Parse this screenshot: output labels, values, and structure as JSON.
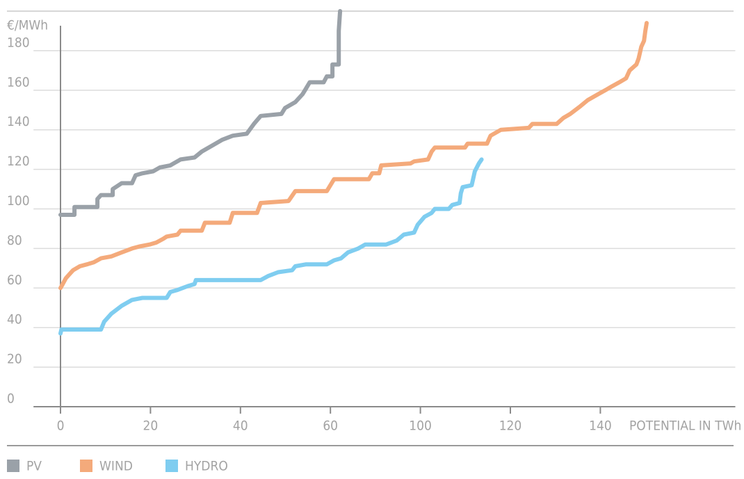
{
  "chart_data": {
    "type": "line",
    "y_label": "€/MWh",
    "x_label": "POTENTIAL IN TWh",
    "xlim": [
      -6,
      170
    ],
    "xticks": [
      0,
      20,
      40,
      60,
      100,
      120,
      140
    ],
    "ylim": [
      0,
      200
    ],
    "yticks": [
      0,
      20,
      40,
      60,
      80,
      100,
      120,
      140,
      160,
      180
    ],
    "grid": true,
    "legend": "bottom",
    "series": [
      {
        "name": "PV",
        "color": "#9aa1a8",
        "x": [
          0,
          3.1,
          3.1,
          8.2,
          8.2,
          9,
          11.6,
          11.6,
          13.6,
          15.9,
          16.7,
          18.2,
          20.6,
          22.1,
          24.4,
          26.7,
          29.8,
          31.4,
          33.7,
          36,
          38.3,
          41.4,
          43,
          44.5,
          49.1,
          49.9,
          52.2,
          53.8,
          54.6,
          55.4,
          58.5,
          59.2,
          60.9,
          60.9,
          63.7,
          63.7,
          64.3
        ],
        "values": [
          97,
          97,
          101,
          101,
          105,
          107,
          107,
          110,
          113,
          113,
          117,
          118,
          119,
          121,
          122,
          125,
          126,
          129,
          132,
          135,
          137,
          138,
          143,
          147,
          148,
          151,
          154,
          158,
          161,
          164,
          164,
          167,
          167,
          173,
          173,
          190,
          200
        ]
      },
      {
        "name": "WIND",
        "color": "#f4aa7b",
        "x": [
          0,
          0.5,
          1.2,
          2,
          2.8,
          4.3,
          5.9,
          7.4,
          9,
          11.3,
          13.6,
          15.9,
          17.5,
          19.8,
          21.3,
          22.9,
          23.6,
          26,
          26.7,
          31.4,
          32.1,
          37.6,
          38.3,
          43.7,
          44.5,
          50.7,
          52.2,
          59.2,
          61.6,
          77.1,
          78.6,
          81.7,
          82.6,
          95.6,
          97.2,
          101.7,
          102.5,
          103.2,
          109.9,
          110.5,
          114.8,
          115.6,
          117.9,
          124.1,
          124.9,
          130.3,
          131.8,
          133.3,
          135.6,
          137.2,
          139.5,
          141.1,
          142.6,
          144.2,
          145.7,
          146.5,
          148,
          148.5,
          149.1,
          149.7,
          150,
          150.3
        ],
        "values": [
          60,
          62,
          65,
          67,
          69,
          71,
          72,
          73,
          75,
          76,
          78,
          80,
          81,
          82,
          83,
          85,
          86,
          87,
          89,
          89,
          93,
          93,
          98,
          98,
          103,
          104,
          109,
          109,
          115,
          115,
          118,
          118,
          122,
          123,
          124,
          125,
          129,
          131,
          131,
          133,
          133,
          137,
          140,
          141,
          143,
          143,
          146,
          148,
          152,
          155,
          158,
          160,
          162,
          164,
          166,
          170,
          173,
          176,
          182,
          185,
          190,
          194
        ]
      },
      {
        "name": "HYDRO",
        "color": "#7fcdf0",
        "x": [
          0,
          0.2,
          9,
          9.7,
          11.3,
          13.6,
          15.9,
          18.2,
          23.6,
          24.4,
          26,
          28.3,
          29.8,
          30.1,
          44.5,
          46.1,
          48.4,
          51.5,
          52.2,
          54.6,
          59.2,
          61.6,
          64.7,
          67.8,
          72.4,
          75.5,
          84.8,
          89.5,
          92.6,
          97.2,
          98.8,
          100.9,
          102.5,
          103.2,
          106.3,
          107.1,
          108.7,
          109,
          109.4,
          111.4,
          112.1,
          113,
          113.6
        ],
        "values": [
          37,
          39,
          39,
          43,
          47,
          51,
          54,
          55,
          55,
          58,
          59,
          61,
          62,
          64,
          64,
          66,
          68,
          69,
          71,
          72,
          72,
          74,
          75,
          78,
          80,
          82,
          82,
          84,
          87,
          88,
          92,
          96,
          98,
          100,
          100,
          102,
          103,
          108,
          111,
          112,
          119,
          123,
          125
        ]
      }
    ]
  }
}
